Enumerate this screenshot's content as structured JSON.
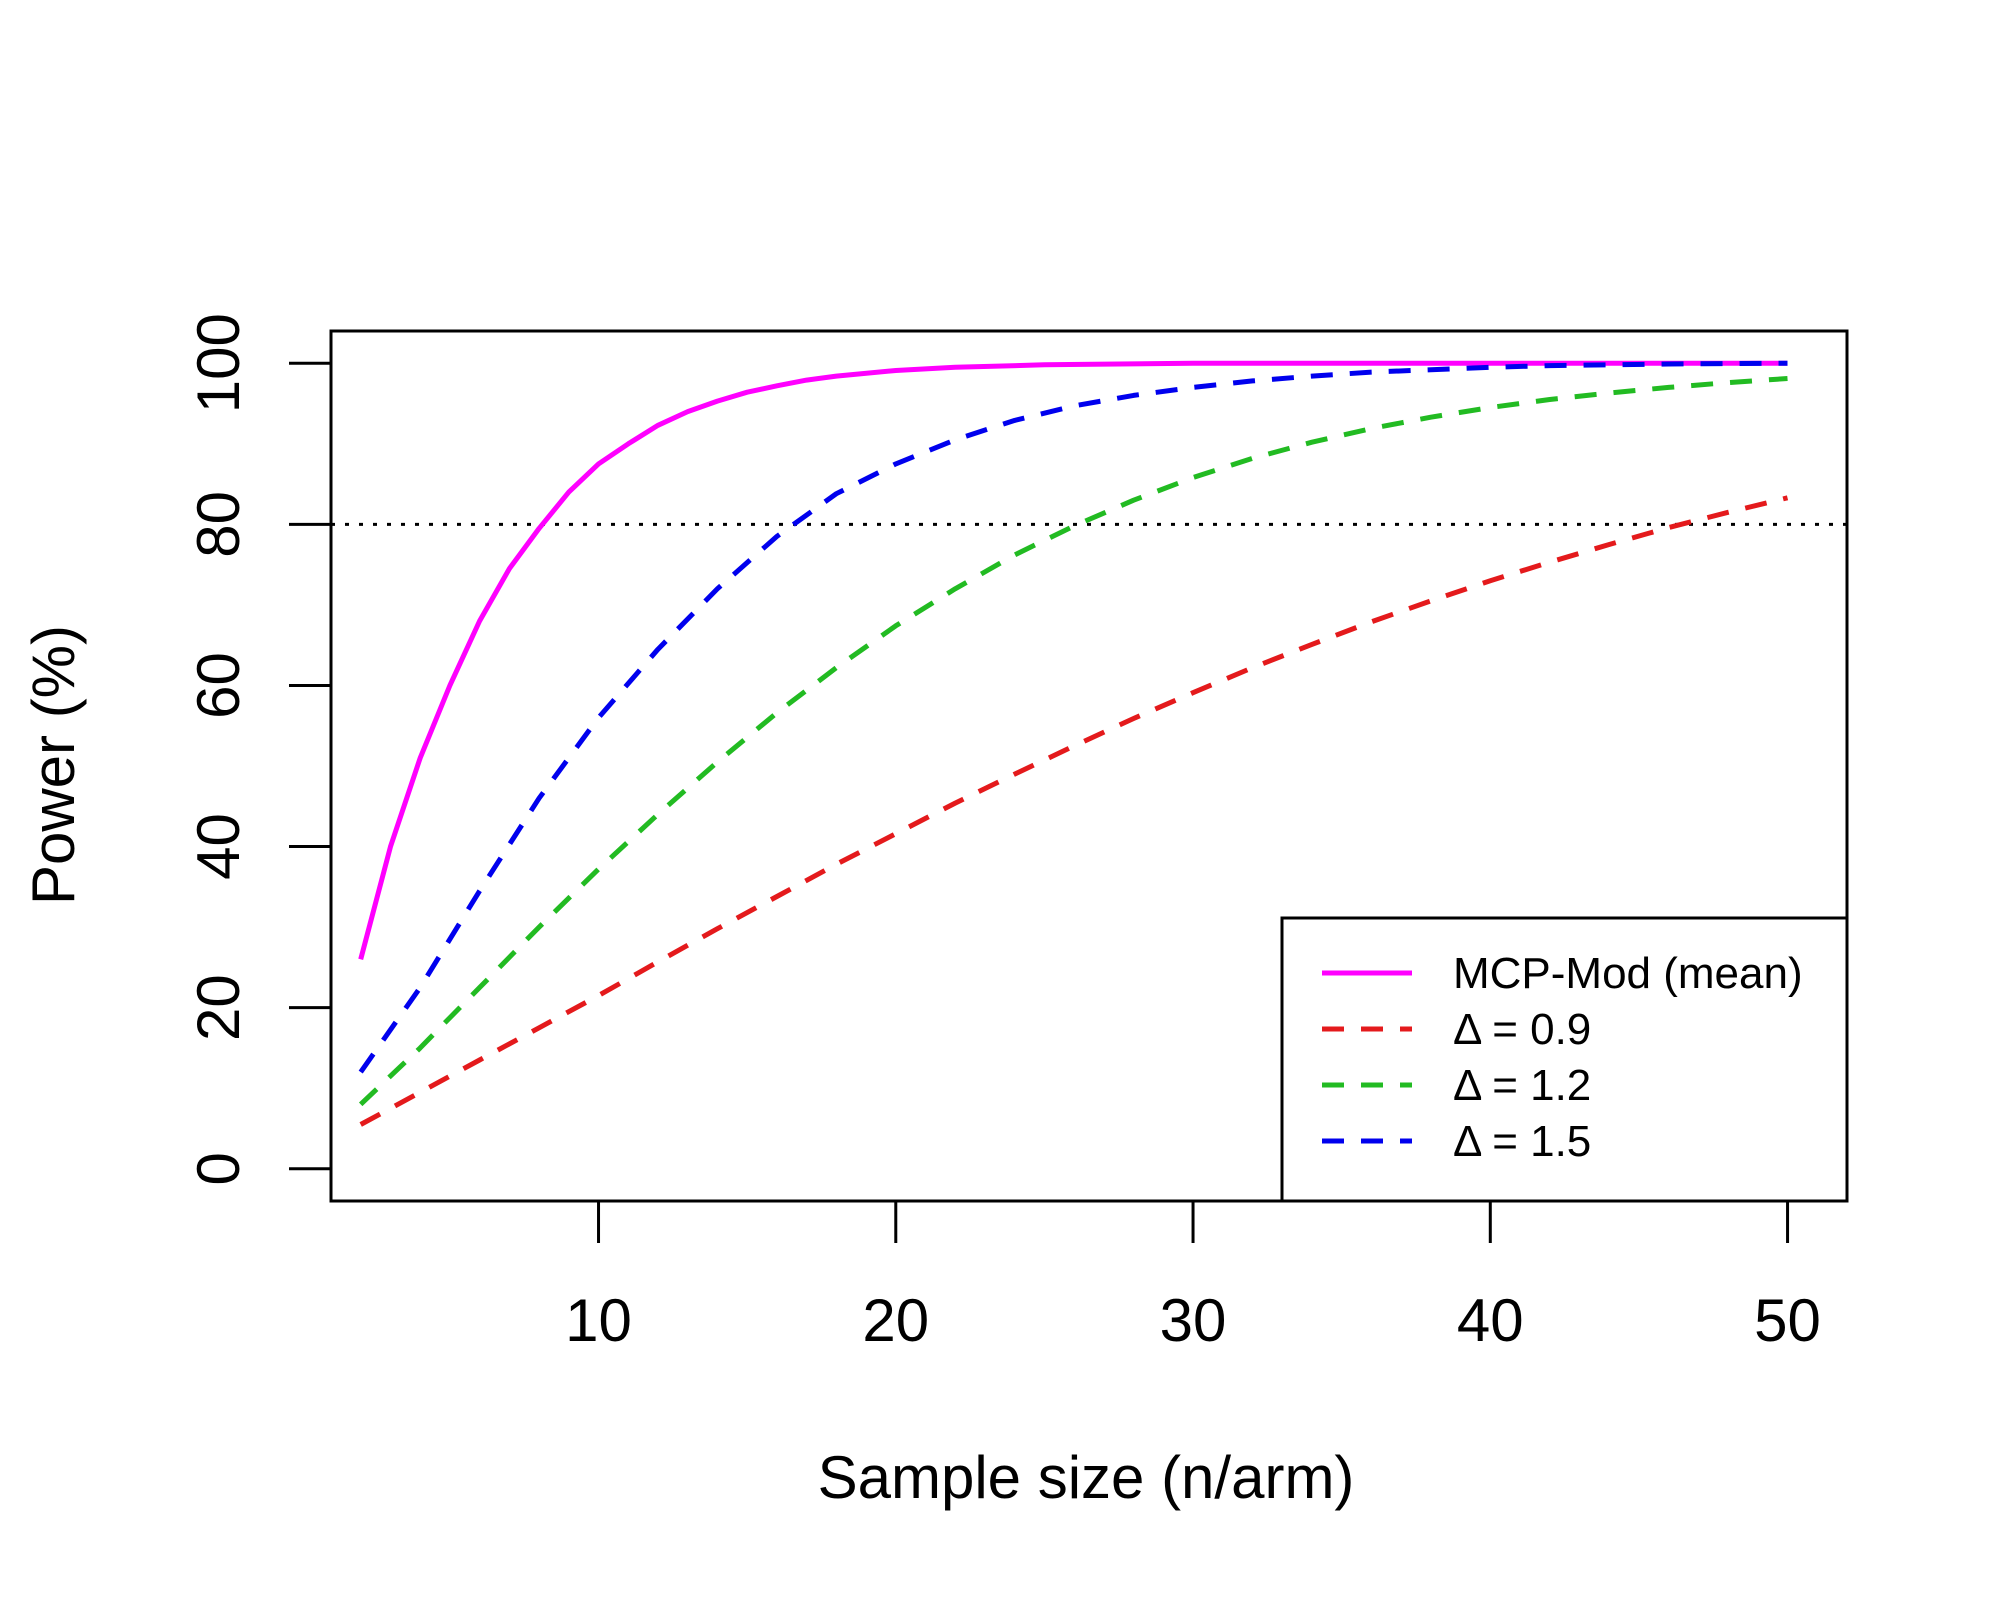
{
  "chart_data": {
    "type": "line",
    "title": "",
    "xlabel": "Sample size (n/arm)",
    "ylabel": "Power (%)",
    "xlim": [
      1,
      52
    ],
    "ylim": [
      -4,
      104
    ],
    "xticks": [
      10,
      20,
      30,
      40,
      50
    ],
    "yticks": [
      0,
      20,
      40,
      60,
      80,
      100
    ],
    "grid": false,
    "legend_position": "bottom-right",
    "reference_lines": [
      {
        "type": "horizontal",
        "y": 80,
        "style": "dotted",
        "color": "#000000"
      }
    ],
    "series": [
      {
        "name": "MCP-Mod (mean)",
        "color": "#ff00ff",
        "style": "solid",
        "x": [
          2,
          3,
          4,
          5,
          6,
          7,
          8,
          9,
          10,
          11,
          12,
          13,
          14,
          15,
          16,
          17,
          18,
          20,
          22,
          25,
          30,
          35,
          40,
          45,
          50
        ],
        "y": [
          26,
          40,
          51,
          60,
          68,
          74.5,
          79.5,
          84,
          87.5,
          90,
          92.3,
          94,
          95.3,
          96.4,
          97.2,
          97.9,
          98.4,
          99.1,
          99.5,
          99.8,
          100,
          100,
          100,
          100,
          100
        ]
      },
      {
        "name": "Δ = 0.9",
        "color": "#e41a1c",
        "style": "dashed",
        "x": [
          2,
          4,
          6,
          8,
          10,
          12,
          14,
          16,
          18,
          20,
          22,
          24,
          26,
          28,
          30,
          32,
          34,
          36,
          38,
          40,
          42,
          44,
          46,
          48,
          50
        ],
        "y": [
          5.5,
          9.5,
          13.5,
          17.5,
          21.5,
          25.7,
          29.8,
          33.8,
          37.8,
          41.6,
          45.4,
          49,
          52.5,
          55.9,
          59.1,
          62.2,
          65.1,
          67.9,
          70.5,
          73,
          75.3,
          77.5,
          79.6,
          81.5,
          83.3
        ]
      },
      {
        "name": "Δ = 1.2",
        "color": "#22bb22",
        "style": "dashed",
        "x": [
          2,
          4,
          6,
          8,
          10,
          12,
          14,
          16,
          18,
          20,
          22,
          24,
          26,
          28,
          30,
          32,
          34,
          36,
          38,
          40,
          42,
          44,
          46,
          48,
          50
        ],
        "y": [
          8,
          15,
          22.5,
          30,
          37.2,
          44,
          50.5,
          56.6,
          62.2,
          67.4,
          72,
          76.2,
          79.8,
          83,
          85.8,
          88.2,
          90.2,
          91.9,
          93.3,
          94.5,
          95.5,
          96.3,
          97,
          97.6,
          98.1
        ]
      },
      {
        "name": "Δ = 1.5",
        "color": "#0000ee",
        "style": "dashed",
        "x": [
          2,
          4,
          6,
          8,
          10,
          12,
          14,
          16,
          18,
          20,
          22,
          24,
          26,
          28,
          30,
          32,
          34,
          36,
          38,
          40,
          42,
          44,
          46,
          48,
          50
        ],
        "y": [
          12,
          22.5,
          34.5,
          46,
          56,
          64.5,
          72,
          78.5,
          83.8,
          87.5,
          90.5,
          92.9,
          94.7,
          96,
          97,
          97.8,
          98.4,
          98.9,
          99.2,
          99.5,
          99.7,
          99.8,
          99.9,
          99.95,
          100
        ]
      }
    ]
  }
}
